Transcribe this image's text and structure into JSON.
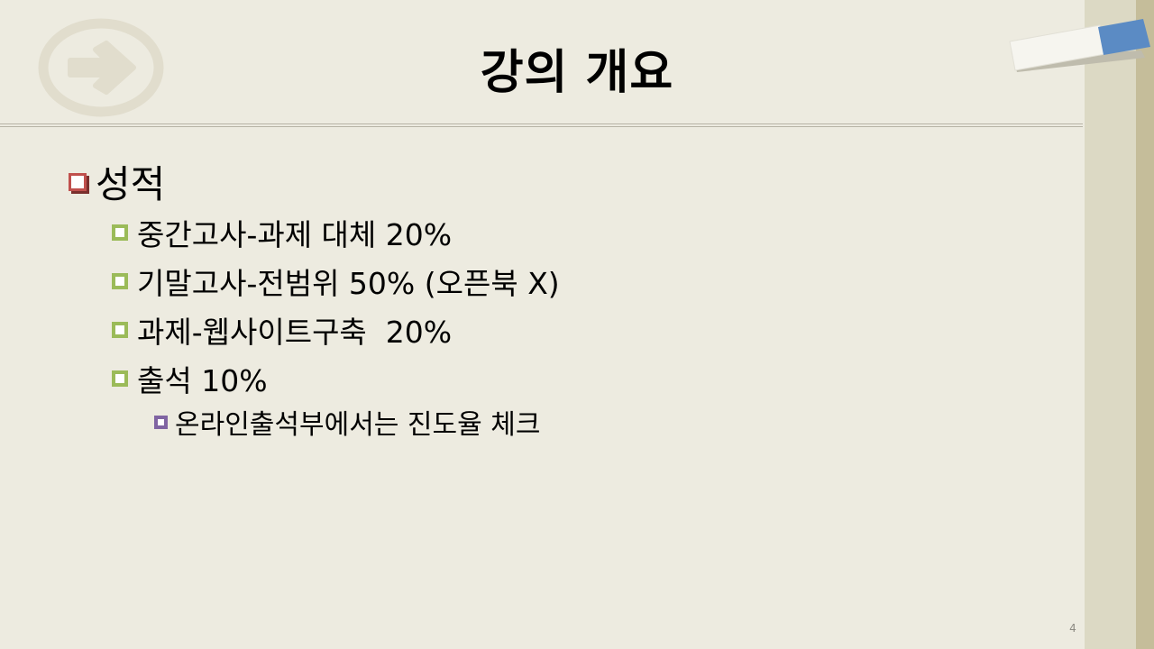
{
  "slide": {
    "title": "강의 개요",
    "page_number": "4"
  },
  "outline": {
    "heading": "성적",
    "items": [
      "중간고사-과제 대체 20%",
      "기말고사-전범위 50% (오픈북 X)",
      "과제-웹사이트구축  20%",
      "출석 10%"
    ],
    "subitem": "온라인출석부에서는 진도율 체크"
  },
  "colors": {
    "background": "#edebe0",
    "bullet_level1": "#c0504d",
    "bullet_level2": "#9bbb59",
    "bullet_level3": "#8064a2",
    "side_strip_light": "#dcd9c4",
    "side_strip_dark": "#c5bd9a"
  },
  "icons": {
    "logo": "arrow-circle-icon",
    "decoration": "pencil-eraser-icon"
  }
}
